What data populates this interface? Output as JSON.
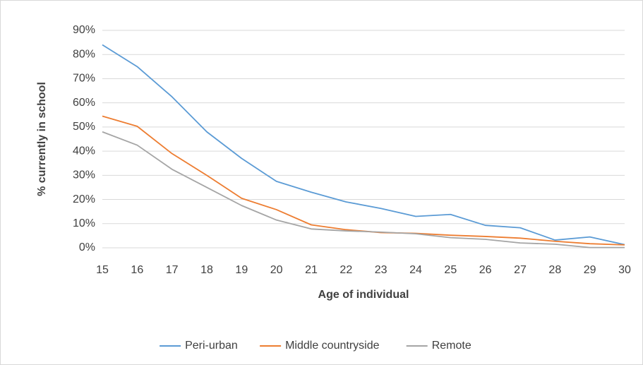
{
  "chart_data": {
    "type": "line",
    "x_label": "Age of individual",
    "y_label": "% currently in school",
    "x": [
      15,
      16,
      17,
      18,
      19,
      20,
      21,
      22,
      23,
      24,
      25,
      26,
      27,
      28,
      29,
      30
    ],
    "xlim": [
      15,
      30
    ],
    "xticks": [
      15,
      16,
      17,
      18,
      19,
      20,
      21,
      22,
      23,
      24,
      25,
      26,
      27,
      28,
      29,
      30
    ],
    "ylim": [
      0,
      90
    ],
    "yticks": [
      {
        "value": 0,
        "label": "0%"
      },
      {
        "value": 10,
        "label": "10%"
      },
      {
        "value": 20,
        "label": "20%"
      },
      {
        "value": 30,
        "label": "30%"
      },
      {
        "value": 40,
        "label": "40%"
      },
      {
        "value": 50,
        "label": "50%"
      },
      {
        "value": 60,
        "label": "60%"
      },
      {
        "value": 70,
        "label": "70%"
      },
      {
        "value": 80,
        "label": "80%"
      },
      {
        "value": 90,
        "label": "90%"
      }
    ],
    "grid": true,
    "legend": "bottom",
    "series": [
      {
        "name": "Peri-urban",
        "color": "#5b9bd5",
        "values": [
          84,
          75,
          62.5,
          48,
          37,
          27.5,
          23,
          19,
          16.3,
          13,
          13.8,
          9.3,
          8.3,
          3.2,
          4.5,
          1.3
        ]
      },
      {
        "name": "Middle countryside",
        "color": "#ed7d31",
        "values": [
          54.5,
          50.3,
          39,
          30,
          20.5,
          15.8,
          9.5,
          7.5,
          6.3,
          6,
          5.2,
          4.7,
          4,
          2.7,
          1.7,
          1.2
        ]
      },
      {
        "name": "Remote",
        "color": "#a5a5a5",
        "values": [
          48,
          42.5,
          32.5,
          25,
          17.5,
          11.5,
          7.8,
          7,
          6.5,
          5.8,
          4.2,
          3.5,
          2,
          1.5,
          0.1,
          0.1
        ]
      }
    ]
  }
}
